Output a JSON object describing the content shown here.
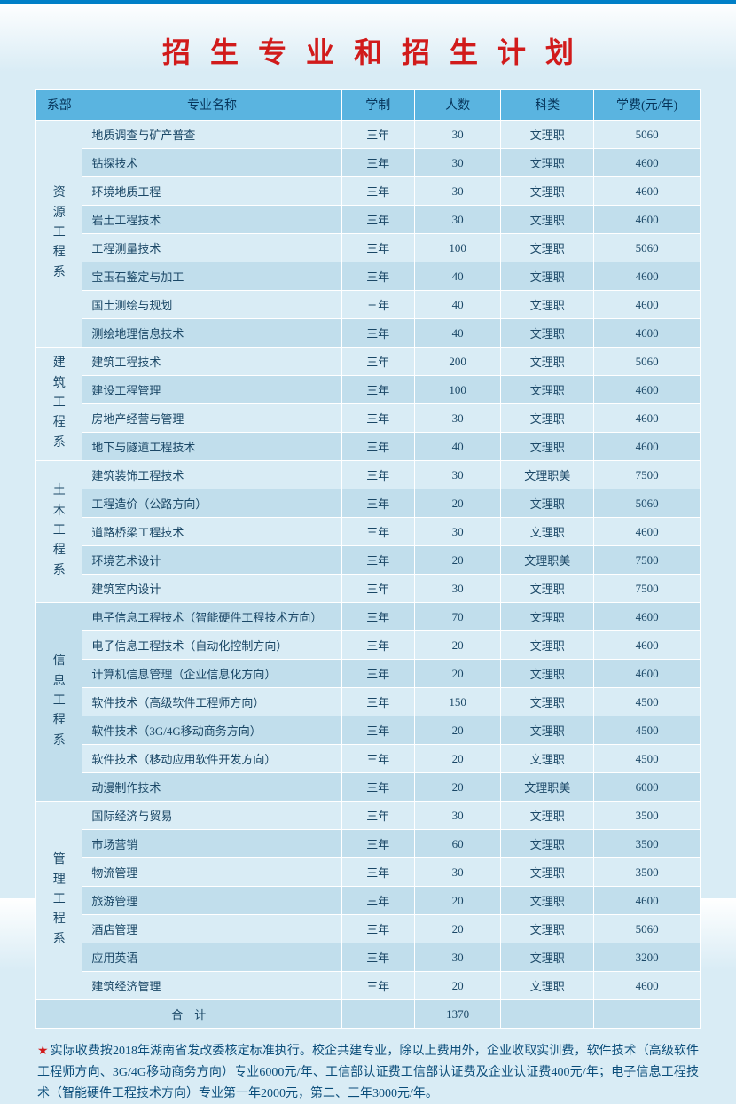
{
  "title": "招生专业和招生计划",
  "columns": {
    "dept": "系部",
    "major": "专业名称",
    "duration": "学制",
    "count": "人数",
    "category": "科类",
    "fee": "学费(元/年)"
  },
  "groups": [
    {
      "dept": "资源工程系",
      "dept_lines": [
        "资",
        "源",
        "工",
        "程",
        "系"
      ],
      "rows": [
        {
          "major": "地质调查与矿产普查",
          "dur": "三年",
          "num": "30",
          "cat": "文理职",
          "fee": "5060"
        },
        {
          "major": "钻探技术",
          "dur": "三年",
          "num": "30",
          "cat": "文理职",
          "fee": "4600"
        },
        {
          "major": "环境地质工程",
          "dur": "三年",
          "num": "30",
          "cat": "文理职",
          "fee": "4600"
        },
        {
          "major": "岩土工程技术",
          "dur": "三年",
          "num": "30",
          "cat": "文理职",
          "fee": "4600"
        },
        {
          "major": "工程测量技术",
          "dur": "三年",
          "num": "100",
          "cat": "文理职",
          "fee": "5060"
        },
        {
          "major": "宝玉石鉴定与加工",
          "dur": "三年",
          "num": "40",
          "cat": "文理职",
          "fee": "4600"
        },
        {
          "major": "国土测绘与规划",
          "dur": "三年",
          "num": "40",
          "cat": "文理职",
          "fee": "4600"
        },
        {
          "major": "测绘地理信息技术",
          "dur": "三年",
          "num": "40",
          "cat": "文理职",
          "fee": "4600"
        }
      ]
    },
    {
      "dept": "建筑工程系",
      "dept_lines": [
        "建",
        "筑",
        "工",
        "程",
        "系"
      ],
      "rows": [
        {
          "major": "建筑工程技术",
          "dur": "三年",
          "num": "200",
          "cat": "文理职",
          "fee": "5060"
        },
        {
          "major": "建设工程管理",
          "dur": "三年",
          "num": "100",
          "cat": "文理职",
          "fee": "4600"
        },
        {
          "major": "房地产经营与管理",
          "dur": "三年",
          "num": "30",
          "cat": "文理职",
          "fee": "4600"
        },
        {
          "major": "地下与隧道工程技术",
          "dur": "三年",
          "num": "40",
          "cat": "文理职",
          "fee": "4600"
        }
      ]
    },
    {
      "dept": "土木工程系",
      "dept_lines": [
        "土",
        "木",
        "工",
        "程",
        "系"
      ],
      "rows": [
        {
          "major": "建筑装饰工程技术",
          "dur": "三年",
          "num": "30",
          "cat": "文理职美",
          "fee": "7500"
        },
        {
          "major": "工程造价（公路方向）",
          "dur": "三年",
          "num": "20",
          "cat": "文理职",
          "fee": "5060"
        },
        {
          "major": "道路桥梁工程技术",
          "dur": "三年",
          "num": "30",
          "cat": "文理职",
          "fee": "4600"
        },
        {
          "major": "环境艺术设计",
          "dur": "三年",
          "num": "20",
          "cat": "文理职美",
          "fee": "7500"
        },
        {
          "major": "建筑室内设计",
          "dur": "三年",
          "num": "30",
          "cat": "文理职",
          "fee": "7500"
        }
      ]
    },
    {
      "dept": "信息工程系",
      "dept_lines": [
        "信",
        "息",
        "工",
        "程",
        "系"
      ],
      "rows": [
        {
          "major": "电子信息工程技术（智能硬件工程技术方向）",
          "dur": "三年",
          "num": "70",
          "cat": "文理职",
          "fee": "4600"
        },
        {
          "major": "电子信息工程技术（自动化控制方向）",
          "dur": "三年",
          "num": "20",
          "cat": "文理职",
          "fee": "4600"
        },
        {
          "major": "计算机信息管理（企业信息化方向）",
          "dur": "三年",
          "num": "20",
          "cat": "文理职",
          "fee": "4600"
        },
        {
          "major": "软件技术（高级软件工程师方向）",
          "dur": "三年",
          "num": "150",
          "cat": "文理职",
          "fee": "4500"
        },
        {
          "major": "软件技术（3G/4G移动商务方向）",
          "dur": "三年",
          "num": "20",
          "cat": "文理职",
          "fee": "4500"
        },
        {
          "major": "软件技术（移动应用软件开发方向）",
          "dur": "三年",
          "num": "20",
          "cat": "文理职",
          "fee": "4500"
        },
        {
          "major": "动漫制作技术",
          "dur": "三年",
          "num": "20",
          "cat": "文理职美",
          "fee": "6000"
        }
      ]
    },
    {
      "dept": "管理工程系",
      "dept_lines": [
        "管",
        "理",
        "工",
        "程",
        "系"
      ],
      "rows": [
        {
          "major": "国际经济与贸易",
          "dur": "三年",
          "num": "30",
          "cat": "文理职",
          "fee": "3500"
        },
        {
          "major": "市场营销",
          "dur": "三年",
          "num": "60",
          "cat": "文理职",
          "fee": "3500"
        },
        {
          "major": "物流管理",
          "dur": "三年",
          "num": "30",
          "cat": "文理职",
          "fee": "3500"
        },
        {
          "major": "旅游管理",
          "dur": "三年",
          "num": "20",
          "cat": "文理职",
          "fee": "4600"
        },
        {
          "major": "酒店管理",
          "dur": "三年",
          "num": "20",
          "cat": "文理职",
          "fee": "5060"
        },
        {
          "major": "应用英语",
          "dur": "三年",
          "num": "30",
          "cat": "文理职",
          "fee": "3200"
        },
        {
          "major": "建筑经济管理",
          "dur": "三年",
          "num": "20",
          "cat": "文理职",
          "fee": "4600"
        }
      ]
    }
  ],
  "total": {
    "label": "合　计",
    "num": "1370"
  },
  "footnote": "实际收费按2018年湖南省发改委核定标准执行。校企共建专业，除以上费用外，企业收取实训费，软件技术（高级软件工程师方向、3G/4G移动商务方向）专业6000元/年、工信部认证费工信部认证费及企业认证费400元/年；电子信息工程技术（智能硬件工程技术方向）专业第一年2000元，第二、三年3000元/年。",
  "style": {
    "title_color": "#d11b1b",
    "header_bg": "#5ab4e0",
    "row_bg": "#d9ecf5",
    "row_alt_bg": "#c1deec",
    "text_color": "#1a4766",
    "page_bg": "#d9ecf5"
  }
}
